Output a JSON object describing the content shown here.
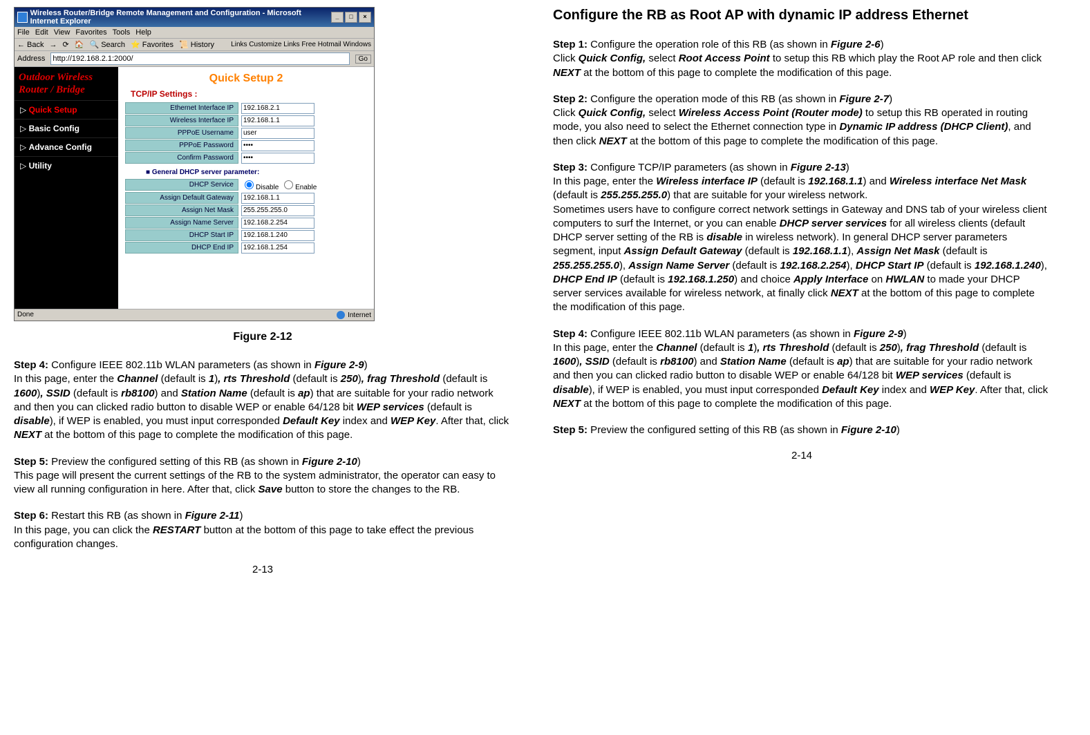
{
  "left": {
    "screenshot": {
      "window_title": "Wireless Router/Bridge Remote Management and Configuration - Microsoft Internet Explorer",
      "menu": [
        "File",
        "Edit",
        "View",
        "Favorites",
        "Tools",
        "Help"
      ],
      "toolbar": [
        "← Back",
        "→",
        "⟳",
        "🏠",
        "🔍 Search",
        "⭐ Favorites",
        "📜 History",
        "✉",
        "🖨",
        "»"
      ],
      "links_bar": "Links  Customize Links  Free Hotmail  Windows",
      "address_label": "Address",
      "address_value": "http://192.168.2.1:2000/",
      "go_label": "Go",
      "logo_line1": "Outdoor Wireless",
      "logo_line2": "Router / Bridge",
      "nav": [
        {
          "label": "Quick Setup",
          "active": true
        },
        {
          "label": "Basic Config",
          "active": false
        },
        {
          "label": "Advance Config",
          "active": false
        },
        {
          "label": "Utility",
          "active": false
        }
      ],
      "heading": "Quick Setup 2",
      "subheading": "TCP/IP Settings :",
      "rows": [
        {
          "label": "Ethernet Interface IP",
          "value": "192.168.2.1",
          "type": "text"
        },
        {
          "label": "Wireless Interface IP",
          "value": "192.168.1.1",
          "type": "text"
        },
        {
          "label": "PPPoE Username",
          "value": "user",
          "type": "text"
        },
        {
          "label": "PPPoE Password",
          "value": "****",
          "type": "password"
        },
        {
          "label": "Confirm Password",
          "value": "****",
          "type": "password"
        }
      ],
      "dhcp_header": "■  General DHCP server parameter:",
      "dhcp_service_label": "DHCP Service",
      "dhcp_disable": "Disable",
      "dhcp_enable": "Enable",
      "dhcp_rows": [
        {
          "label": "Assign Default Gateway",
          "value": "192.168.1.1"
        },
        {
          "label": "Assign Net Mask",
          "value": "255.255.255.0"
        },
        {
          "label": "Assign Name Server",
          "value": "192.168.2.254"
        },
        {
          "label": "DHCP Start IP",
          "value": "192.168.1.240"
        },
        {
          "label": "DHCP End IP",
          "value": "192.168.1.254"
        }
      ],
      "status_left": "Done",
      "status_right": "Internet"
    },
    "figure_caption": "Figure 2-12",
    "step4_label": "Step 4:",
    "step4_title": " Configure IEEE 802.11b WLAN parameters (as shown in ",
    "step4_fig": "Figure 2-9",
    "step4_body_1": "In this page, enter the ",
    "channel": "Channel",
    "ch_def": "1",
    "rts": "rts Threshold",
    "rts_def": "250",
    "frag": "frag Threshold",
    "frag_def": "1600",
    "ssid": "SSID",
    "ssid_def": "rb8100",
    "sta": "Station Name",
    "sta_def": "ap",
    "step4_body_2": ") that are suitable for your radio network and then you can clicked radio button to disable WEP or enable 64/128 bit ",
    "wep": "WEP services",
    "wep_def": "disable",
    "step4_body_3": "), if WEP is enabled, you must input corresponded ",
    "defkey": "Default Key",
    "wepkey": "WEP Key",
    "step4_body_4": ". After that, click ",
    "next": "NEXT",
    "step4_body_5": " at the bottom of this page to complete the modification of this page.",
    "step5_label": "Step 5:",
    "step5_title": " Preview the configured setting of this RB (as shown in ",
    "step5_fig": "Figure 2-10",
    "step5_body": "This page will present the current settings of the RB to the system administrator, the operator can easy to view all running configuration in here. After that, click ",
    "save": "Save",
    "step5_body2": " button to store the changes to the RB.",
    "step6_label": "Step 6:",
    "step6_title": " Restart this RB (as shown in ",
    "step6_fig": "Figure 2-11",
    "step6_body_1": "In this page, you can click the ",
    "restart": "RESTART",
    "step6_body_2": " button at the bottom of this page to take effect the previous configuration changes.",
    "page_num": "2-13"
  },
  "right": {
    "title": "Configure the RB as Root AP with dynamic IP address Ethernet",
    "s1_label": "Step 1:",
    "s1_a": " Configure the operation role of this RB (as shown in ",
    "s1_fig": "Figure 2-6",
    "s1_b": "Click ",
    "s1_qc": "Quick Config,",
    "s1_c": " select ",
    "s1_rap": "Root Access Point",
    "s1_d": " to setup this RB which play the Root AP role and then click ",
    "s1_next": "NEXT",
    "s1_e": " at the bottom of this page to complete the modification of this page.",
    "s2_label": "Step 2:",
    "s2_a": " Configure the operation mode of this RB (as shown in ",
    "s2_fig": "Figure 2-7",
    "s2_b": "Click ",
    "s2_qc": "Quick Config,",
    "s2_c": " select ",
    "s2_wap": "Wireless Access Point (Router mode)",
    "s2_d": " to setup this RB operated in routing mode, you also need to select the Ethernet connection type in ",
    "s2_dip": "Dynamic IP address (DHCP Client)",
    "s2_e": ", and then click ",
    "s2_next": "NEXT",
    "s2_f": " at the bottom of this page to complete the modification of this page.",
    "s3_label": "Step 3:",
    "s3_a": " Configure TCP/IP parameters (as shown in ",
    "s3_fig": "Figure 2-13",
    "s3_b": "In this page, enter the ",
    "s3_wip": "Wireless interface IP",
    "s3_wip_def": "192.168.1.1",
    "s3_c": ") and ",
    "s3_wnm": "Wireless interface Net Mask",
    "s3_wnm_def": "255.255.255.0",
    "s3_d": ") that are suitable for your wireless network.",
    "s3_e": "Sometimes users have to configure correct network settings in Gateway and DNS tab of your wireless client computers to surf the Internet, or you can enable ",
    "s3_dhcp": "DHCP server services",
    "s3_f": " for all wireless clients (default DHCP server setting of the RB is ",
    "s3_dis": "disable",
    "s3_g": " in wireless network). In general DHCP server parameters segment, input ",
    "s3_adg": "Assign Default Gateway",
    "s3_adg_def": "192.168.1.1",
    "s3_anm": "Assign Net Mask",
    "s3_anm_def": "255.255.255.0",
    "s3_ans": "Assign Name Server",
    "s3_ans_def": "192.168.2.254",
    "s3_dsi": "DHCP Start IP",
    "s3_dsi_def": "192.168.1.240",
    "s3_dei": "DHCP End IP",
    "s3_dei_def": "192.168.1.250",
    "s3_ai": "Apply Interface",
    "s3_hw": "HWLAN",
    "s3_h": " to made your DHCP server services available for wireless network, at finally click ",
    "s3_next": "NEXT",
    "s3_i": " at the bottom of this page to complete the modification of this page.",
    "s4_label": "Step 4:",
    "s5_label": "Step 5:",
    "s5_a": " Preview the configured setting of this RB (as shown in ",
    "s5_fig": "Figure 2-10",
    "page_num": "2-14"
  }
}
